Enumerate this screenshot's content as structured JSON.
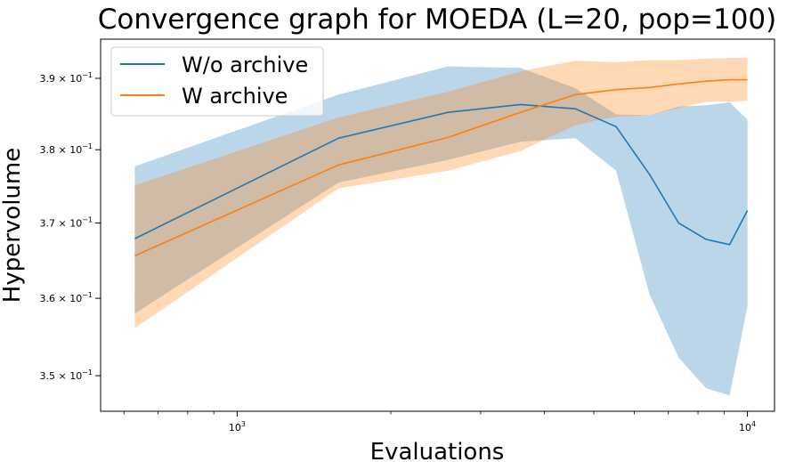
{
  "chart_data": {
    "type": "line",
    "title": "Convergence graph for MOEDA (L=20, pop=100)",
    "xlabel": "Evaluations",
    "ylabel": "Hypervolume",
    "xscale": "log",
    "yscale": "log",
    "xlim": [
      540,
      11300
    ],
    "ylim": [
      0.3455,
      0.3956
    ],
    "x_ticks": [
      {
        "value": 1000,
        "base": "10",
        "exp": "3"
      },
      {
        "value": 10000,
        "base": "10",
        "exp": "4"
      }
    ],
    "y_ticks": [
      {
        "value": 0.35,
        "mant": "3.5",
        "base": "10",
        "exp": "−1"
      },
      {
        "value": 0.36,
        "mant": "3.6",
        "base": "10",
        "exp": "−1"
      },
      {
        "value": 0.37,
        "mant": "3.7",
        "base": "10",
        "exp": "−1"
      },
      {
        "value": 0.38,
        "mant": "3.8",
        "base": "10",
        "exp": "−1"
      },
      {
        "value": 0.39,
        "mant": "3.9",
        "base": "10",
        "exp": "−1"
      }
    ],
    "legend_position": "top-left",
    "grid": false,
    "series": [
      {
        "name": "W/o archive",
        "color": "#1f77b4",
        "band_color": "#1f77b4",
        "band_opacity": 0.3,
        "x": [
          630,
          1580,
          2590,
          3590,
          4600,
          5530,
          6430,
          7330,
          8300,
          9230,
          10000
        ],
        "y": [
          0.3679,
          0.3816,
          0.3852,
          0.3863,
          0.3857,
          0.3832,
          0.3766,
          0.37,
          0.3678,
          0.3671,
          0.3717
        ],
        "upper": [
          0.3777,
          0.3877,
          0.3917,
          0.3915,
          0.3886,
          0.3849,
          0.3848,
          0.386,
          0.3862,
          0.3866,
          0.3842
        ],
        "lower": [
          0.358,
          0.3755,
          0.3786,
          0.3811,
          0.3816,
          0.3771,
          0.3605,
          0.3523,
          0.3484,
          0.3475,
          0.359
        ]
      },
      {
        "name": "W archive",
        "color": "#ff7f0e",
        "band_color": "#ff7f0e",
        "band_opacity": 0.3,
        "x": [
          630,
          1580,
          2590,
          3590,
          4600,
          5530,
          6430,
          7330,
          8300,
          9230,
          10000
        ],
        "y": [
          0.3656,
          0.3779,
          0.3817,
          0.3852,
          0.3877,
          0.3884,
          0.3887,
          0.3892,
          0.3896,
          0.3898,
          0.3898
        ],
        "upper": [
          0.3751,
          0.3845,
          0.3881,
          0.391,
          0.3925,
          0.3923,
          0.3926,
          0.3926,
          0.3928,
          0.3929,
          0.3929
        ],
        "lower": [
          0.3561,
          0.3747,
          0.3771,
          0.3798,
          0.3834,
          0.3846,
          0.3848,
          0.3858,
          0.3867,
          0.3867,
          0.3868
        ]
      }
    ]
  }
}
